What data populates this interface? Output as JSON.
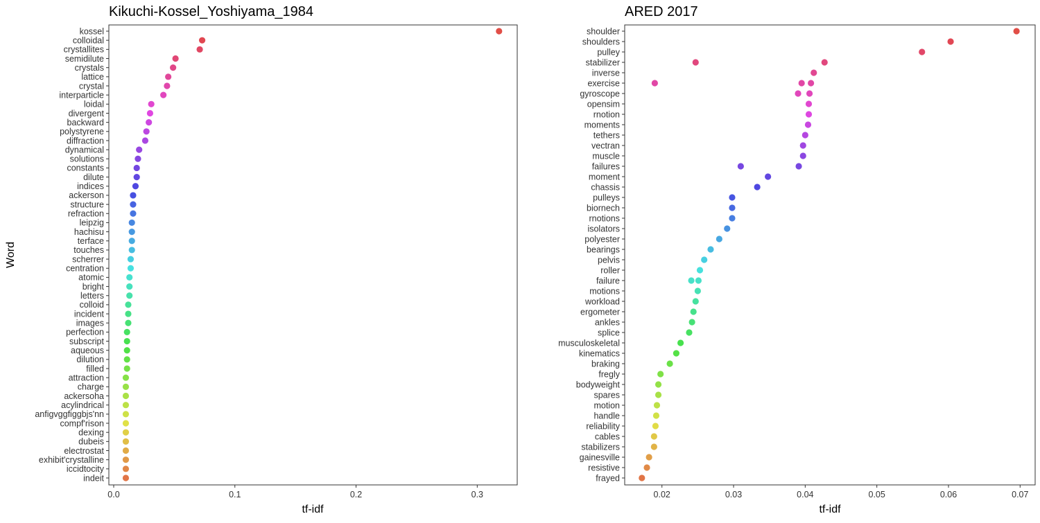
{
  "shared_ylabel": "Word",
  "chart_data": [
    {
      "type": "scatter",
      "title": "Kikuchi-Kossel_Yoshiyama_1984",
      "xlabel": "tf-idf",
      "ylabel": "Word",
      "xlim": [
        -0.004,
        0.333
      ],
      "xticks": [
        0.0,
        0.1,
        0.2,
        0.3
      ],
      "xtick_labels": [
        "0.0",
        "0.1",
        "0.2",
        "0.3"
      ],
      "grid": false,
      "legend": "none",
      "color_scale": "hue gradient by word rank (red top, magenta, blue, teal, green, olive, orange, red bottom)",
      "categories": [
        "kossel",
        "colloidal",
        "crystallites",
        "semidilute",
        "crystals",
        "lattice",
        "crystal",
        "interparticle",
        "loidal",
        "divergent",
        "backward",
        "polystyrene",
        "diffraction",
        "dynamical",
        "solutions",
        "constants",
        "dilute",
        "indices",
        "ackerson",
        "structure",
        "refraction",
        "leipzig",
        "hachisu",
        "terface",
        "touches",
        "scherrer",
        "centration",
        "atomic",
        "bright",
        "letters",
        "colloid",
        "incident",
        "images",
        "perfection",
        "subscript",
        "aqueous",
        "dilution",
        "filled",
        "attraction",
        "charge",
        "ackersoha",
        "acylindrical",
        "anfigvggfiggbjs'nn",
        "compf'rison",
        "dexing",
        "dubeis",
        "electrostat",
        "exhibit'crystalline",
        "iccidtocity",
        "indeit"
      ],
      "points": [
        {
          "word": "kossel",
          "x": [
            0.318
          ]
        },
        {
          "word": "colloidal",
          "x": [
            0.073
          ]
        },
        {
          "word": "crystallites",
          "x": [
            0.071
          ]
        },
        {
          "word": "semidilute",
          "x": [
            0.051
          ]
        },
        {
          "word": "crystals",
          "x": [
            0.049
          ]
        },
        {
          "word": "lattice",
          "x": [
            0.045
          ]
        },
        {
          "word": "crystal",
          "x": [
            0.044
          ]
        },
        {
          "word": "interparticle",
          "x": [
            0.041
          ]
        },
        {
          "word": "loidal",
          "x": [
            0.031
          ]
        },
        {
          "word": "divergent",
          "x": [
            0.03
          ]
        },
        {
          "word": "backward",
          "x": [
            0.029
          ]
        },
        {
          "word": "polystyrene",
          "x": [
            0.027
          ]
        },
        {
          "word": "diffraction",
          "x": [
            0.026
          ]
        },
        {
          "word": "dynamical",
          "x": [
            0.021
          ]
        },
        {
          "word": "solutions",
          "x": [
            0.02
          ]
        },
        {
          "word": "constants",
          "x": [
            0.019
          ]
        },
        {
          "word": "dilute",
          "x": [
            0.019
          ]
        },
        {
          "word": "indices",
          "x": [
            0.018
          ]
        },
        {
          "word": "ackerson",
          "x": [
            0.016
          ]
        },
        {
          "word": "structure",
          "x": [
            0.016
          ]
        },
        {
          "word": "refraction",
          "x": [
            0.016
          ]
        },
        {
          "word": "leipzig",
          "x": [
            0.015
          ]
        },
        {
          "word": "hachisu",
          "x": [
            0.015
          ]
        },
        {
          "word": "terface",
          "x": [
            0.015
          ]
        },
        {
          "word": "touches",
          "x": [
            0.015
          ]
        },
        {
          "word": "scherrer",
          "x": [
            0.014
          ]
        },
        {
          "word": "centration",
          "x": [
            0.014
          ]
        },
        {
          "word": "atomic",
          "x": [
            0.013
          ]
        },
        {
          "word": "bright",
          "x": [
            0.013
          ]
        },
        {
          "word": "letters",
          "x": [
            0.013
          ]
        },
        {
          "word": "colloid",
          "x": [
            0.012
          ]
        },
        {
          "word": "incident",
          "x": [
            0.012
          ]
        },
        {
          "word": "images",
          "x": [
            0.012
          ]
        },
        {
          "word": "perfection",
          "x": [
            0.011
          ]
        },
        {
          "word": "subscript",
          "x": [
            0.011
          ]
        },
        {
          "word": "aqueous",
          "x": [
            0.011
          ]
        },
        {
          "word": "dilution",
          "x": [
            0.011
          ]
        },
        {
          "word": "filled",
          "x": [
            0.011
          ]
        },
        {
          "word": "attraction",
          "x": [
            0.01
          ]
        },
        {
          "word": "charge",
          "x": [
            0.01
          ]
        },
        {
          "word": "ackersoha",
          "x": [
            0.01
          ]
        },
        {
          "word": "acylindrical",
          "x": [
            0.01
          ]
        },
        {
          "word": "anfigvggfiggbjs'nn",
          "x": [
            0.01
          ]
        },
        {
          "word": "compf'rison",
          "x": [
            0.01
          ]
        },
        {
          "word": "dexing",
          "x": [
            0.01
          ]
        },
        {
          "word": "dubeis",
          "x": [
            0.01
          ]
        },
        {
          "word": "electrostat",
          "x": [
            0.01
          ]
        },
        {
          "word": "exhibit'crystalline",
          "x": [
            0.01
          ]
        },
        {
          "word": "iccidtocity",
          "x": [
            0.01
          ]
        },
        {
          "word": "indeit",
          "x": [
            0.01
          ]
        }
      ]
    },
    {
      "type": "scatter",
      "title": "ARED 2017",
      "xlabel": "tf-idf",
      "ylabel": "",
      "xlim": [
        0.0148,
        0.0721
      ],
      "xticks": [
        0.02,
        0.03,
        0.04,
        0.05,
        0.06,
        0.07
      ],
      "xtick_labels": [
        "0.02",
        "0.03",
        "0.04",
        "0.05",
        "0.06",
        "0.07"
      ],
      "grid": false,
      "legend": "none",
      "color_scale": "hue gradient by word rank (red top, magenta, blue, teal, green, olive, orange, red bottom)",
      "categories": [
        "shoulder",
        "shoulders",
        "pulley",
        "stabilizer",
        "inverse",
        "exercise",
        "gyroscope",
        "opensim",
        "rnotion",
        "moments",
        "tethers",
        "vectran",
        "muscle",
        "failures",
        "moment",
        "chassis",
        "pulleys",
        "biornech",
        "rnotions",
        "isolators",
        "polyester",
        "bearings",
        "pelvis",
        "roller",
        "failure",
        "motions",
        "workload",
        "ergometer",
        "ankles",
        "splice",
        "musculoskeletal",
        "kinematics",
        "braking",
        "fregly",
        "bodyweight",
        "spares",
        "motion",
        "handle",
        "reliability",
        "cables",
        "stabilizers",
        "gainesville",
        "resistive",
        "frayed"
      ],
      "points": [
        {
          "word": "shoulder",
          "x": [
            0.0695
          ]
        },
        {
          "word": "shoulders",
          "x": [
            0.0603
          ]
        },
        {
          "word": "pulley",
          "x": [
            0.0563
          ]
        },
        {
          "word": "stabilizer",
          "x": [
            0.0247,
            0.0427
          ]
        },
        {
          "word": "inverse",
          "x": [
            0.0412
          ]
        },
        {
          "word": "exercise",
          "x": [
            0.019,
            0.0395,
            0.0408
          ]
        },
        {
          "word": "gyroscope",
          "x": [
            0.039,
            0.0406
          ]
        },
        {
          "word": "opensim",
          "x": [
            0.0405
          ]
        },
        {
          "word": "rnotion",
          "x": [
            0.0405
          ]
        },
        {
          "word": "moments",
          "x": [
            0.0404
          ]
        },
        {
          "word": "tethers",
          "x": [
            0.04
          ]
        },
        {
          "word": "vectran",
          "x": [
            0.0397
          ]
        },
        {
          "word": "muscle",
          "x": [
            0.0397
          ]
        },
        {
          "word": "failures",
          "x": [
            0.031,
            0.0391
          ]
        },
        {
          "word": "moment",
          "x": [
            0.0348
          ]
        },
        {
          "word": "chassis",
          "x": [
            0.0333
          ]
        },
        {
          "word": "pulleys",
          "x": [
            0.0298
          ]
        },
        {
          "word": "biornech",
          "x": [
            0.0298
          ]
        },
        {
          "word": "rnotions",
          "x": [
            0.0298
          ]
        },
        {
          "word": "isolators",
          "x": [
            0.0291
          ]
        },
        {
          "word": "polyester",
          "x": [
            0.028
          ]
        },
        {
          "word": "bearings",
          "x": [
            0.0268
          ]
        },
        {
          "word": "pelvis",
          "x": [
            0.0259
          ]
        },
        {
          "word": "roller",
          "x": [
            0.0253
          ]
        },
        {
          "word": "failure",
          "x": [
            0.0241,
            0.0251
          ]
        },
        {
          "word": "motions",
          "x": [
            0.025
          ]
        },
        {
          "word": "workload",
          "x": [
            0.0247
          ]
        },
        {
          "word": "ergometer",
          "x": [
            0.0244
          ]
        },
        {
          "word": "ankles",
          "x": [
            0.0242
          ]
        },
        {
          "word": "splice",
          "x": [
            0.0238
          ]
        },
        {
          "word": "musculoskeletal",
          "x": [
            0.0226
          ]
        },
        {
          "word": "kinematics",
          "x": [
            0.022
          ]
        },
        {
          "word": "braking",
          "x": [
            0.0211
          ]
        },
        {
          "word": "fregly",
          "x": [
            0.0198
          ]
        },
        {
          "word": "bodyweight",
          "x": [
            0.0195
          ]
        },
        {
          "word": "spares",
          "x": [
            0.0195
          ]
        },
        {
          "word": "motion",
          "x": [
            0.0193
          ]
        },
        {
          "word": "handle",
          "x": [
            0.0192
          ]
        },
        {
          "word": "reliability",
          "x": [
            0.0191
          ]
        },
        {
          "word": "cables",
          "x": [
            0.0189
          ]
        },
        {
          "word": "stabilizers",
          "x": [
            0.0189
          ]
        },
        {
          "word": "gainesville",
          "x": [
            0.0182
          ]
        },
        {
          "word": "resistive",
          "x": [
            0.0179
          ]
        },
        {
          "word": "frayed",
          "x": [
            0.0172
          ]
        }
      ]
    }
  ]
}
